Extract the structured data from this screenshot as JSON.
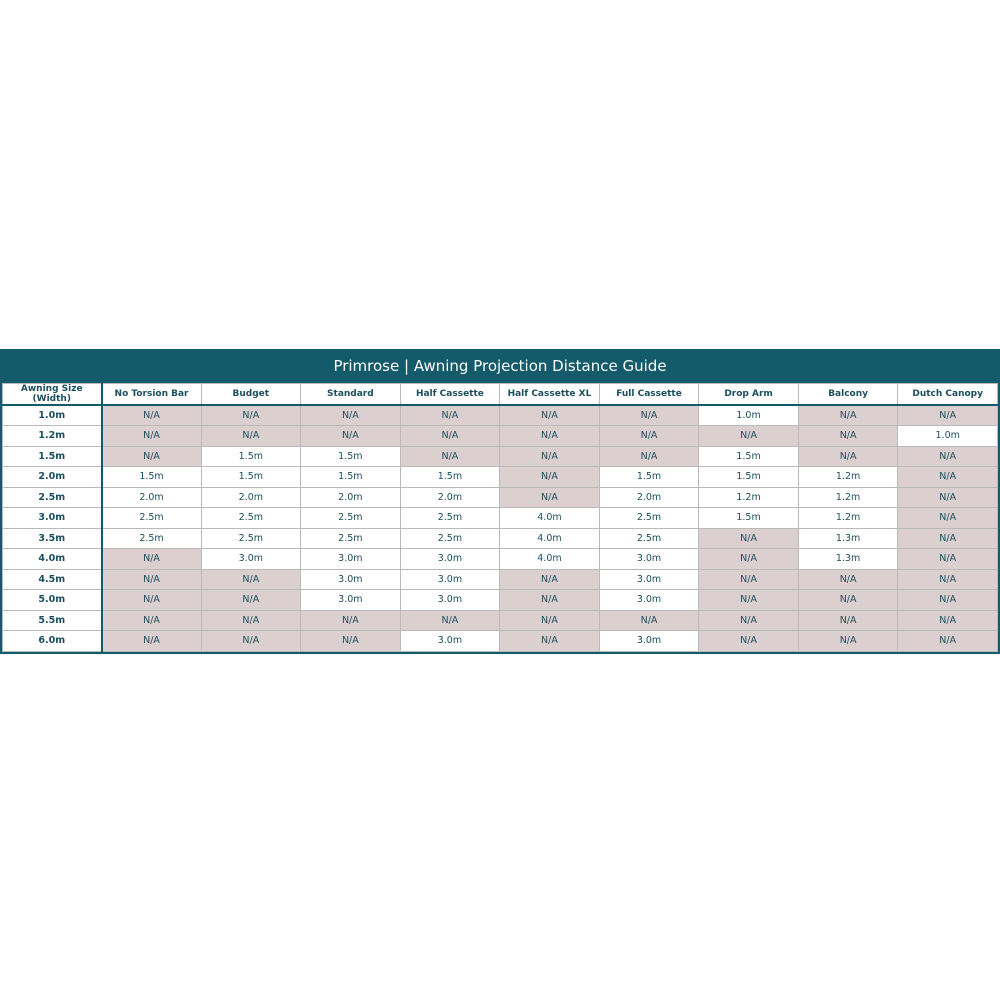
{
  "title": "Primrose | Awning Projection Distance Guide",
  "colors": {
    "header_bg": "#135a6b",
    "na_bg": "#dccfcf",
    "text": "#1c4f5e"
  },
  "columns": [
    "Awning Size (Width)",
    "No Torsion Bar",
    "Budget",
    "Standard",
    "Half Cassette",
    "Half Cassette XL",
    "Full Cassette",
    "Drop Arm",
    "Balcony",
    "Dutch Canopy"
  ],
  "rows": [
    {
      "size": "1.0m",
      "values": [
        "N/A",
        "N/A",
        "N/A",
        "N/A",
        "N/A",
        "N/A",
        "1.0m",
        "N/A",
        "N/A"
      ]
    },
    {
      "size": "1.2m",
      "values": [
        "N/A",
        "N/A",
        "N/A",
        "N/A",
        "N/A",
        "N/A",
        "N/A",
        "N/A",
        "1.0m"
      ]
    },
    {
      "size": "1.5m",
      "values": [
        "N/A",
        "1.5m",
        "1.5m",
        "N/A",
        "N/A",
        "N/A",
        "1.5m",
        "N/A",
        "N/A"
      ]
    },
    {
      "size": "2.0m",
      "values": [
        "1.5m",
        "1.5m",
        "1.5m",
        "1.5m",
        "N/A",
        "1.5m",
        "1.5m",
        "1.2m",
        "N/A"
      ]
    },
    {
      "size": "2.5m",
      "values": [
        "2.0m",
        "2.0m",
        "2.0m",
        "2.0m",
        "N/A",
        "2.0m",
        "1.2m",
        "1.2m",
        "N/A"
      ]
    },
    {
      "size": "3.0m",
      "values": [
        "2.5m",
        "2.5m",
        "2.5m",
        "2.5m",
        "4.0m",
        "2.5m",
        "1.5m",
        "1.2m",
        "N/A"
      ]
    },
    {
      "size": "3.5m",
      "values": [
        "2.5m",
        "2.5m",
        "2.5m",
        "2.5m",
        "4.0m",
        "2.5m",
        "N/A",
        "1.3m",
        "N/A"
      ]
    },
    {
      "size": "4.0m",
      "values": [
        "N/A",
        "3.0m",
        "3.0m",
        "3.0m",
        "4.0m",
        "3.0m",
        "N/A",
        "1.3m",
        "N/A"
      ]
    },
    {
      "size": "4.5m",
      "values": [
        "N/A",
        "N/A",
        "3.0m",
        "3.0m",
        "N/A",
        "3.0m",
        "N/A",
        "N/A",
        "N/A"
      ]
    },
    {
      "size": "5.0m",
      "values": [
        "N/A",
        "N/A",
        "3.0m",
        "3.0m",
        "N/A",
        "3.0m",
        "N/A",
        "N/A",
        "N/A"
      ]
    },
    {
      "size": "5.5m",
      "values": [
        "N/A",
        "N/A",
        "N/A",
        "N/A",
        "N/A",
        "N/A",
        "N/A",
        "N/A",
        "N/A"
      ]
    },
    {
      "size": "6.0m",
      "values": [
        "N/A",
        "N/A",
        "N/A",
        "3.0m",
        "N/A",
        "3.0m",
        "N/A",
        "N/A",
        "N/A"
      ]
    }
  ]
}
